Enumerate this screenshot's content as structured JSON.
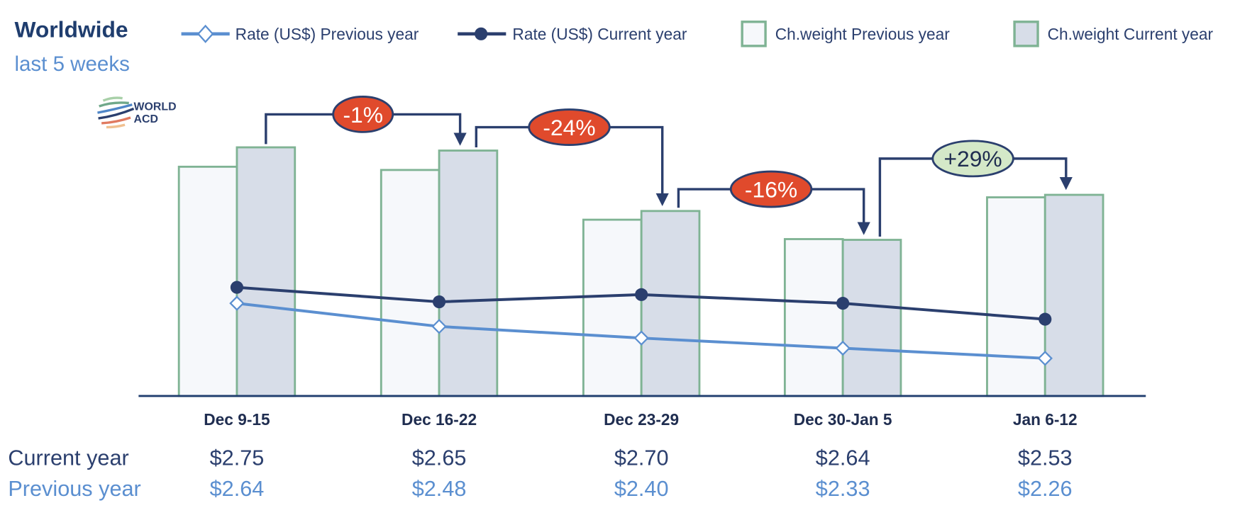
{
  "header": {
    "title": "Worldwide",
    "subtitle": "last 5 weeks"
  },
  "logo": {
    "text_line1": "WORLD",
    "text_line2": "ACD"
  },
  "chart_data": {
    "type": "bar",
    "categories": [
      "Dec 9-15",
      "Dec 16-22",
      "Dec 23-29",
      "Dec 30-Jan 5",
      "Jan 6-12"
    ],
    "series": [
      {
        "name": "Ch.weight Previous year",
        "kind": "bar",
        "values": [
          92.2,
          90.9,
          70.9,
          63.1,
          79.9
        ],
        "fill": "#f6f8fb",
        "stroke": "#7fb394"
      },
      {
        "name": "Ch.weight Current year",
        "kind": "bar",
        "values": [
          100,
          98.7,
          74.4,
          62.8,
          80.9
        ],
        "fill": "#d7dde8",
        "stroke": "#7fb394"
      },
      {
        "name": "Rate (US$) Previous year",
        "kind": "line",
        "marker": "diamond",
        "values": [
          2.64,
          2.48,
          2.4,
          2.33,
          2.26
        ],
        "color": "#5b8fd0"
      },
      {
        "name": "Rate (US$) Current year",
        "kind": "line",
        "marker": "circle",
        "values": [
          2.75,
          2.65,
          2.7,
          2.64,
          2.53
        ],
        "color": "#2b3f6e"
      }
    ],
    "weight_note": "relative chargeable weight index (no axis shown)",
    "changes": [
      {
        "label": "-1%",
        "color": "#e04a2c",
        "text_color": "#ffffff"
      },
      {
        "label": "-24%",
        "color": "#e04a2c",
        "text_color": "#ffffff"
      },
      {
        "label": "-16%",
        "color": "#e04a2c",
        "text_color": "#ffffff"
      },
      {
        "label": "+29%",
        "color": "#d4e8c8",
        "text_color": "#1f2d50"
      }
    ],
    "legend_position": "top",
    "grid": false
  },
  "table": {
    "current_label": "Current year",
    "previous_label": "Previous year",
    "current": [
      "$2.75",
      "$2.65",
      "$2.70",
      "$2.64",
      "$2.53"
    ],
    "previous": [
      "$2.64",
      "$2.48",
      "$2.40",
      "$2.33",
      "$2.26"
    ]
  }
}
